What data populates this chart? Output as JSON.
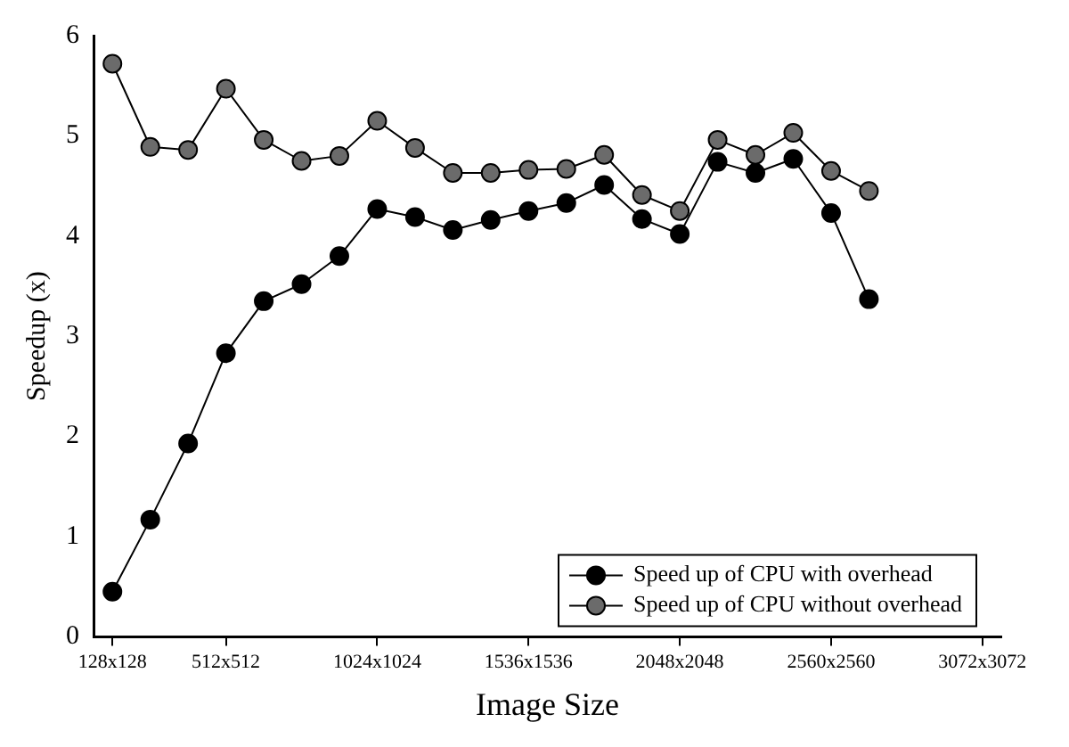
{
  "chart_data": {
    "type": "line",
    "xlabel": "Image Size",
    "ylabel": "Speedup (x)",
    "categories": [
      "128x128",
      null,
      null,
      "512x512",
      null,
      null,
      null,
      "1024x1024",
      null,
      null,
      null,
      "1536x1536",
      null,
      null,
      null,
      "2048x2048",
      null,
      null,
      null,
      "2560x2560",
      null,
      null,
      null,
      "3072x3072"
    ],
    "series": [
      {
        "name": "Speed up of CPU with overhead",
        "color": "#000000",
        "values": [
          0.45,
          1.17,
          1.93,
          2.83,
          3.35,
          3.52,
          3.8,
          4.27,
          4.19,
          4.06,
          4.16,
          4.25,
          4.33,
          4.51,
          4.17,
          4.02,
          4.74,
          4.63,
          4.77,
          4.23,
          3.37,
          null,
          null,
          null
        ]
      },
      {
        "name": "Speed up of CPU without overhead",
        "color": "#6b6b6b",
        "values": [
          5.72,
          4.89,
          4.86,
          5.47,
          4.96,
          4.75,
          4.8,
          5.15,
          4.88,
          4.63,
          4.63,
          4.66,
          4.67,
          4.81,
          4.41,
          4.25,
          4.96,
          4.81,
          5.03,
          4.65,
          4.45,
          null,
          null,
          null
        ]
      }
    ],
    "ylim": [
      0,
      6
    ],
    "yticks": [
      0,
      1,
      2,
      3,
      4,
      5,
      6
    ],
    "grid": false,
    "legend": "bottom right",
    "marker": "circle",
    "line_style": "solid"
  }
}
